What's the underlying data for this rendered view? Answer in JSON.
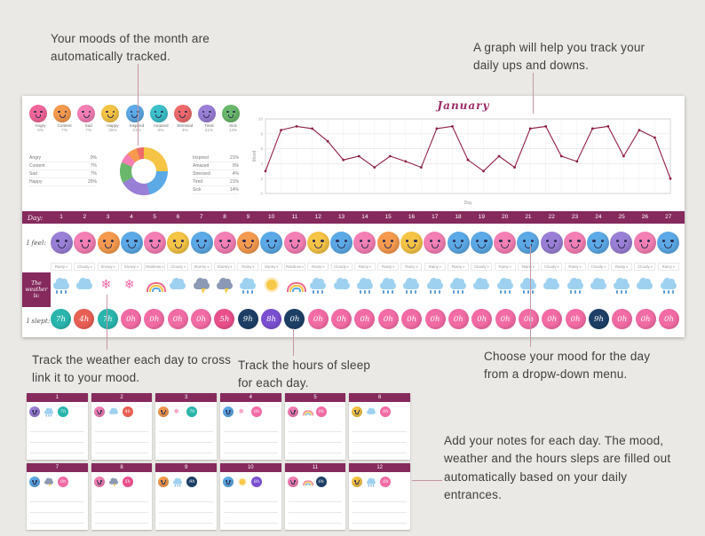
{
  "theme": {
    "accent": "#862a5d",
    "title_color": "#9c2b63",
    "line_color": "#8e2044",
    "page_bg": "#eae9e5",
    "panel_bg": "#ffffff",
    "connector": "#c795a7"
  },
  "annotations": {
    "moods_tracked": "Your moods of the month are automatically tracked.",
    "graph_track": "A graph will help you track your daily ups and downs.",
    "weather_track": "Track the weather each day to cross link it to your mood.",
    "sleep_track": "Track the hours of sleep for each day.",
    "mood_dropdown": "Choose your mood for the day from a dropw-down menu.",
    "notes": "Add your notes for each day. The mood, weather and the hours sleps are filled out automatically based on your daily entrances."
  },
  "summary": {
    "moods": [
      {
        "label": "Angry",
        "pct": "0%",
        "color": "#f2679a"
      },
      {
        "label": "Content",
        "pct": "7%",
        "color": "#f59a4e"
      },
      {
        "label": "Sad",
        "pct": "7%",
        "color": "#f47fb4"
      },
      {
        "label": "Happy",
        "pct": "25%",
        "color": "#f5c445"
      },
      {
        "label": "Inspired",
        "pct": "21%",
        "color": "#5ba9e6"
      },
      {
        "label": "Amazed",
        "pct": "0%",
        "color": "#3cc0c9"
      },
      {
        "label": "Stressed",
        "pct": "4%",
        "color": "#ef6a6a"
      },
      {
        "label": "Tired",
        "pct": "21%",
        "color": "#9a7fd6"
      },
      {
        "label": "Sick",
        "pct": "14%",
        "color": "#69b86b"
      }
    ]
  },
  "chart_data": [
    {
      "type": "line",
      "title": "January",
      "x": [
        1,
        2,
        3,
        4,
        5,
        6,
        7,
        8,
        9,
        10,
        11,
        12,
        13,
        14,
        15,
        16,
        17,
        18,
        19,
        20,
        21,
        22,
        23,
        24,
        25,
        26,
        27
      ],
      "values": [
        3,
        8.5,
        9,
        8.7,
        7,
        4.5,
        5,
        3.5,
        5,
        4.3,
        3.5,
        8.7,
        9,
        4.5,
        3,
        5,
        3.5,
        8.7,
        9,
        5,
        4.3,
        8.7,
        9,
        5,
        8.5,
        7.5,
        2
      ],
      "xlabel": "Day",
      "ylabel": "Mood",
      "ylim": [
        0,
        10
      ],
      "grid": true,
      "legend_position": "none"
    },
    {
      "type": "pie",
      "donut": true,
      "title": "",
      "labels": [
        "Happy",
        "Inspired",
        "Tired",
        "Sick",
        "Sad",
        "Content",
        "Stressed"
      ],
      "values": [
        25,
        21,
        21,
        14,
        7,
        7,
        4
      ],
      "colors": [
        "#f5c445",
        "#5ba9e6",
        "#9a7fd6",
        "#69b86b",
        "#f47fb4",
        "#f59a4e",
        "#ef6a6a"
      ]
    }
  ],
  "tracker": {
    "day_label": "Day:",
    "feel_label": "I feel:",
    "weather_label": "The weather is:",
    "sleep_label": "I slept:",
    "days": [
      {
        "day": "1",
        "mood": "#9a7fd6",
        "weather": "rain",
        "weather_option": "Rainy",
        "sleep": "7h",
        "sleep_color": "#29b5ac"
      },
      {
        "day": "2",
        "mood": "#f47fb4",
        "weather": "cloud",
        "weather_option": "Cloudy",
        "sleep": "4h",
        "sleep_color": "#e85f54"
      },
      {
        "day": "3",
        "mood": "#f59a4e",
        "weather": "snow",
        "weather_option": "Snowy",
        "sleep": "7h",
        "sleep_color": "#29b5ac"
      },
      {
        "day": "4",
        "mood": "#5ba9e6",
        "weather": "snow",
        "weather_option": "Snowy",
        "sleep": "0h",
        "sleep_color": "#f26ba4"
      },
      {
        "day": "5",
        "mood": "#f47fb4",
        "weather": "rainbow",
        "weather_option": "Rainbow",
        "sleep": "0h",
        "sleep_color": "#f26ba4"
      },
      {
        "day": "6",
        "mood": "#f5c445",
        "weather": "cloud",
        "weather_option": "Cloudy",
        "sleep": "0h",
        "sleep_color": "#f26ba4"
      },
      {
        "day": "7",
        "mood": "#5ba9e6",
        "weather": "storm",
        "weather_option": "Stormy",
        "sleep": "0h",
        "sleep_color": "#f26ba4"
      },
      {
        "day": "8",
        "mood": "#f47fb4",
        "weather": "storm",
        "weather_option": "Stormy",
        "sleep": "5h",
        "sleep_color": "#e84f8a"
      },
      {
        "day": "9",
        "mood": "#f59a4e",
        "weather": "rain",
        "weather_option": "Rainy",
        "sleep": "9h",
        "sleep_color": "#1d3f66"
      },
      {
        "day": "10",
        "mood": "#5ba9e6",
        "weather": "sun",
        "weather_option": "Sunny",
        "sleep": "8h",
        "sleep_color": "#7a4fd0"
      },
      {
        "day": "11",
        "mood": "#f47fb4",
        "weather": "rainbow",
        "weather_option": "Rainbow",
        "sleep": "0h",
        "sleep_color": "#1d3f66"
      },
      {
        "day": "12",
        "mood": "#f5c445",
        "weather": "rain",
        "weather_option": "Rainy",
        "sleep": "0h",
        "sleep_color": "#f26ba4"
      },
      {
        "day": "13",
        "mood": "#5ba9e6",
        "weather": "cloud",
        "weather_option": "Cloudy",
        "sleep": "0h",
        "sleep_color": "#f26ba4"
      },
      {
        "day": "14",
        "mood": "#f47fb4",
        "weather": "rain",
        "weather_option": "Rainy",
        "sleep": "0h",
        "sleep_color": "#f26ba4"
      },
      {
        "day": "15",
        "mood": "#f59a4e",
        "weather": "rain",
        "weather_option": "Rainy",
        "sleep": "0h",
        "sleep_color": "#f26ba4"
      },
      {
        "day": "16",
        "mood": "#f5c445",
        "weather": "rain",
        "weather_option": "Rainy",
        "sleep": "0h",
        "sleep_color": "#f26ba4"
      },
      {
        "day": "17",
        "mood": "#f47fb4",
        "weather": "rain",
        "weather_option": "Rainy",
        "sleep": "0h",
        "sleep_color": "#f26ba4"
      },
      {
        "day": "18",
        "mood": "#5ba9e6",
        "weather": "rain",
        "weather_option": "Rainy",
        "sleep": "0h",
        "sleep_color": "#f26ba4"
      },
      {
        "day": "19",
        "mood": "#5ba9e6",
        "weather": "cloud",
        "weather_option": "Cloudy",
        "sleep": "0h",
        "sleep_color": "#f26ba4"
      },
      {
        "day": "20",
        "mood": "#f47fb4",
        "weather": "rain",
        "weather_option": "Rainy",
        "sleep": "0h",
        "sleep_color": "#f26ba4"
      },
      {
        "day": "21",
        "mood": "#5ba9e6",
        "weather": "rain",
        "weather_option": "Rainy",
        "sleep": "0h",
        "sleep_color": "#f26ba4"
      },
      {
        "day": "22",
        "mood": "#9a7fd6",
        "weather": "cloud",
        "weather_option": "Cloudy",
        "sleep": "0h",
        "sleep_color": "#f26ba4"
      },
      {
        "day": "23",
        "mood": "#f47fb4",
        "weather": "rain",
        "weather_option": "Rainy",
        "sleep": "0h",
        "sleep_color": "#f26ba4"
      },
      {
        "day": "24",
        "mood": "#5ba9e6",
        "weather": "cloud",
        "weather_option": "Cloudy",
        "sleep": "9h",
        "sleep_color": "#1d3f66"
      },
      {
        "day": "25",
        "mood": "#9a7fd6",
        "weather": "rain",
        "weather_option": "Rainy",
        "sleep": "0h",
        "sleep_color": "#f26ba4"
      },
      {
        "day": "26",
        "mood": "#f47fb4",
        "weather": "cloud",
        "weather_option": "Cloudy",
        "sleep": "0h",
        "sleep_color": "#f26ba4"
      },
      {
        "day": "27",
        "mood": "#5ba9e6",
        "weather": "rain",
        "weather_option": "Rainy",
        "sleep": "0h",
        "sleep_color": "#f26ba4"
      }
    ]
  }
}
